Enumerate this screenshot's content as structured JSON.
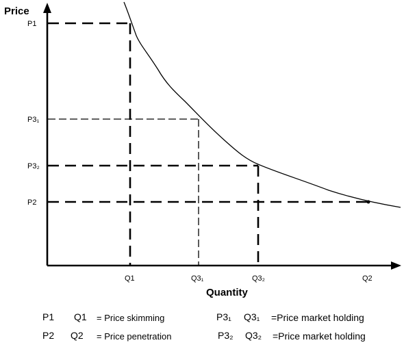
{
  "axes": {
    "y_title": "Price",
    "x_title": "Quantity"
  },
  "price_labels": {
    "p1": "P1",
    "p3_1": "P3₁",
    "p3_2": "P3₂",
    "p2": "P2"
  },
  "quantity_labels": {
    "q1": "Q1",
    "q3_1": "Q3₁",
    "q3_2": "Q3₂",
    "q2": "Q2"
  },
  "legend": [
    {
      "p": "P1",
      "q": "Q1",
      "text": "= Price skimming"
    },
    {
      "p": "P3₁",
      "q": "Q3₁",
      "text": "=Price market holding"
    },
    {
      "p": "P2",
      "q": "Q2",
      "text": "= Price penetration"
    },
    {
      "p": "P3₂",
      "q": "Q3₂",
      "text": "=Price market holding"
    }
  ]
}
